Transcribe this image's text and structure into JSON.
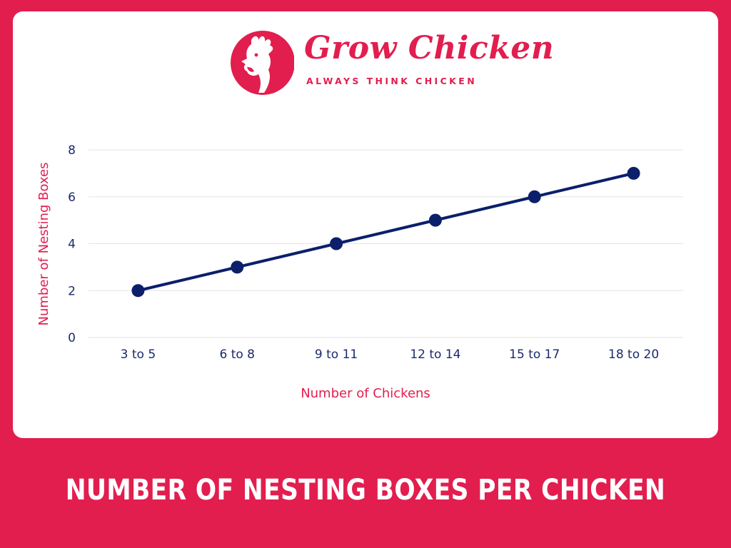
{
  "brand": {
    "name": "Grow Chicken",
    "tagline": "ALWAYS THINK CHICKEN",
    "logo_icon": "rooster-icon"
  },
  "colors": {
    "background": "#e21e4f",
    "accent": "#e21e4f",
    "line": "#0b1f6b",
    "ticks": "#1b2a6b",
    "grid": "#e6e6e6"
  },
  "chart_data": {
    "type": "line",
    "title": "NUMBER OF NESTING BOXES PER CHICKEN",
    "xlabel": "Number of Chickens",
    "ylabel": "Number of Nesting Boxes",
    "categories": [
      "3 to 5",
      "6 to 8",
      "9 to 11",
      "12 to 14",
      "15 to 17",
      "18 to 20"
    ],
    "series": [
      {
        "values": [
          2,
          3,
          4,
          5,
          6,
          7
        ]
      }
    ],
    "ylim": [
      0,
      8
    ],
    "yticks": [
      0,
      2,
      4,
      6,
      8
    ],
    "grid": true,
    "legend": "none"
  }
}
